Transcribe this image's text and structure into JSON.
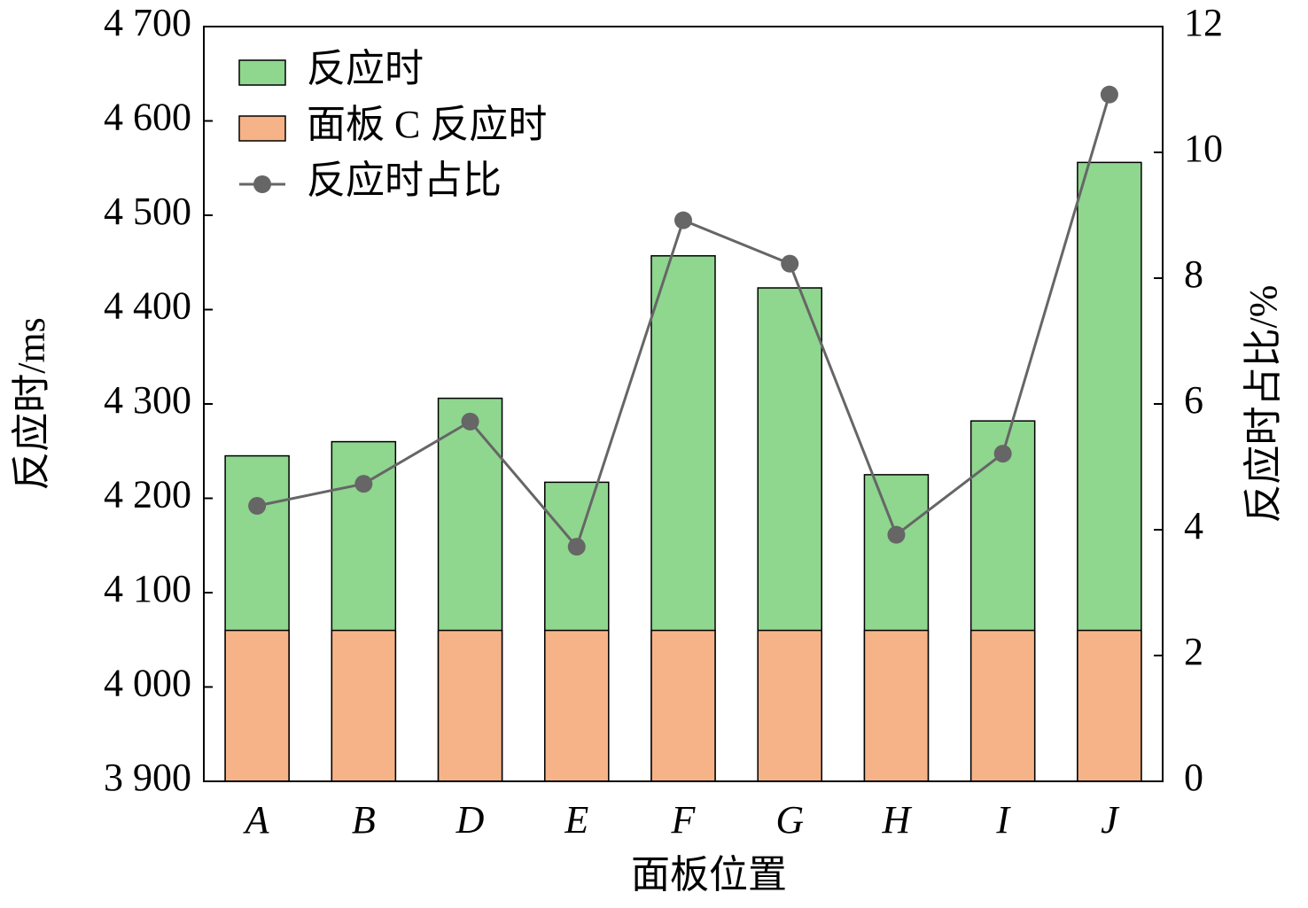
{
  "chart_data": {
    "type": "bar",
    "x_label": "面板位置",
    "y_label": "反应时/ms",
    "y2_label": "反应时占比/%",
    "categories": [
      "A",
      "B",
      "D",
      "E",
      "F",
      "G",
      "H",
      "I",
      "J"
    ],
    "series": [
      {
        "name": "反应时",
        "color": "#8fd68f",
        "values": [
          4245,
          4260,
          4306,
          4217,
          4457,
          4423,
          4225,
          4282,
          4556
        ]
      },
      {
        "name": "面板 C 反应时",
        "color": "#f6b388",
        "values": [
          4060,
          4060,
          4060,
          4060,
          4060,
          4060,
          4060,
          4060,
          4060
        ]
      },
      {
        "name": "反应时占比",
        "type": "line",
        "axis": "y2",
        "color": "#666666",
        "values": [
          4.38,
          4.73,
          5.72,
          3.73,
          8.92,
          8.23,
          3.92,
          5.21,
          10.92
        ]
      }
    ],
    "ylim": [
      3900,
      4700
    ],
    "yticks": [
      {
        "value": 3900,
        "label": "3 900"
      },
      {
        "value": 4000,
        "label": "4 000"
      },
      {
        "value": 4100,
        "label": "4 100"
      },
      {
        "value": 4200,
        "label": "4 200"
      },
      {
        "value": 4300,
        "label": "4 300"
      },
      {
        "value": 4400,
        "label": "4 400"
      },
      {
        "value": 4500,
        "label": "4 500"
      },
      {
        "value": 4600,
        "label": "4 600"
      },
      {
        "value": 4700,
        "label": "4 700"
      }
    ],
    "y2lim": [
      0,
      12
    ],
    "y2ticks": [
      0,
      2,
      4,
      6,
      8,
      10,
      12
    ],
    "legend": "upper left"
  }
}
